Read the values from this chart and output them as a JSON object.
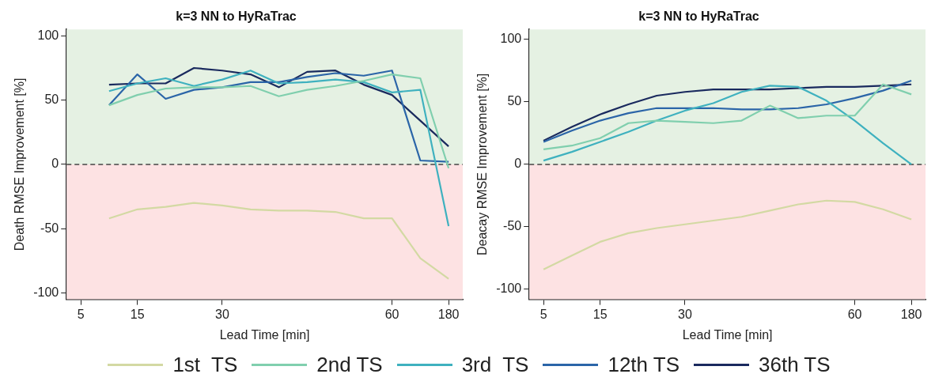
{
  "chart_data": [
    {
      "type": "line",
      "title": "k=3 NN to HyRaTrac",
      "xlabel": "Lead Time [min]",
      "ylabel": "Death RMSE Improvement [%]",
      "categories": [
        "5",
        null,
        "15",
        null,
        null,
        "30",
        null,
        null,
        null,
        null,
        null,
        "60",
        null,
        "180"
      ],
      "ylim": [
        -105,
        105
      ],
      "yticks": [
        -100,
        -50,
        0,
        50,
        100
      ],
      "grid": false,
      "legend": "bottom",
      "marker": "none",
      "line_style": "solid",
      "bands": [
        {
          "axis": "y",
          "from": 0,
          "to": 105,
          "color": "#e5f1e3"
        },
        {
          "axis": "y",
          "from": -105,
          "to": 0,
          "color": "#fde2e3"
        }
      ],
      "ref_lines": [
        {
          "axis": "y",
          "value": 0,
          "color": "#444444",
          "line_style": "dashed"
        }
      ],
      "series": [
        {
          "name": "1st  TS",
          "color": "#d3d9a3",
          "values": [
            null,
            -42,
            -35,
            -33,
            -30,
            -32,
            -35,
            -36,
            -36,
            -37,
            -42,
            -42,
            -73,
            -89
          ]
        },
        {
          "name": "2nd TS",
          "color": "#80cfae",
          "values": [
            null,
            46,
            54,
            59,
            60,
            60,
            61,
            53,
            58,
            61,
            65,
            70,
            67,
            -3
          ]
        },
        {
          "name": "3rd  TS",
          "color": "#3fb1bf",
          "values": [
            null,
            57,
            63,
            67,
            61,
            66,
            73,
            63,
            64,
            66,
            64,
            56,
            58,
            -48
          ]
        },
        {
          "name": "12th TS",
          "color": "#2b65a8",
          "values": [
            null,
            46,
            70,
            51,
            58,
            60,
            64,
            64,
            68,
            71,
            69,
            73,
            3,
            2
          ]
        },
        {
          "name": "36th TS",
          "color": "#1a2a5e",
          "values": [
            null,
            62,
            63,
            63,
            75,
            73,
            70,
            60,
            72,
            73,
            62,
            54,
            34,
            14
          ]
        }
      ]
    },
    {
      "type": "line",
      "title": "k=3 NN to HyRaTrac",
      "xlabel": "Lead Time [min]",
      "ylabel": "Deacay RMSE Improvement [%]",
      "categories": [
        "5",
        null,
        "15",
        null,
        null,
        "30",
        null,
        null,
        null,
        null,
        null,
        "60",
        null,
        "180"
      ],
      "ylim": [
        -108,
        108
      ],
      "yticks": [
        -100,
        -50,
        0,
        50,
        100
      ],
      "grid": false,
      "marker": "none",
      "line_style": "solid",
      "bands": [
        {
          "axis": "y",
          "from": 0,
          "to": 108,
          "color": "#e5f1e3"
        },
        {
          "axis": "y",
          "from": -108,
          "to": 0,
          "color": "#fde2e3"
        }
      ],
      "ref_lines": [
        {
          "axis": "y",
          "value": 0,
          "color": "#444444",
          "line_style": "dashed"
        }
      ],
      "series": [
        {
          "color": "#d3d9a3",
          "values": [
            -84,
            -73,
            -62,
            -55,
            -51,
            -48,
            -45,
            -42,
            -37,
            -32,
            -29,
            -30,
            -36,
            -44
          ]
        },
        {
          "color": "#80cfae",
          "values": [
            12,
            15,
            21,
            33,
            35,
            34,
            33,
            35,
            47,
            37,
            39,
            39,
            64,
            56
          ]
        },
        {
          "color": "#3fb1bf",
          "values": [
            3,
            10,
            18,
            26,
            35,
            43,
            49,
            58,
            63,
            62,
            51,
            35,
            17,
            0
          ]
        },
        {
          "color": "#2b65a8",
          "values": [
            18,
            27,
            35,
            41,
            45,
            45,
            45,
            44,
            44,
            45,
            48,
            53,
            59,
            67
          ]
        },
        {
          "color": "#1a2a5e",
          "values": [
            19,
            30,
            40,
            48,
            55,
            58,
            60,
            60,
            60,
            61,
            62,
            62,
            63,
            64
          ]
        }
      ]
    }
  ]
}
